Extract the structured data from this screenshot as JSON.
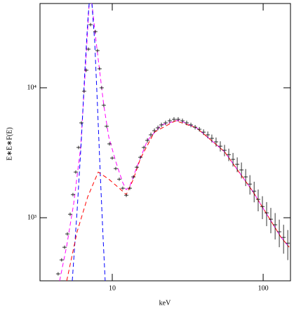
{
  "chart_data": {
    "type": "scatter",
    "xlabel": "keV",
    "ylabel": "E∗E∗F(E)",
    "log_x": true,
    "log_y": true,
    "xlim": [
      3.32,
      151.7
    ],
    "ylim": [
      327,
      44500
    ],
    "xticks": [
      10,
      100
    ],
    "yticks": [
      {
        "value": 1000,
        "label": "10³"
      },
      {
        "value": 10000,
        "label": "10⁴"
      }
    ],
    "color": "#000000",
    "x": [
      4.38,
      4.62,
      4.83,
      5.04,
      5.26,
      5.49,
      5.73,
      5.98,
      6.24,
      6.51,
      6.73,
      6.95,
      7.18,
      7.73,
      7.98,
      8.24,
      8.51,
      8.79,
      9.18,
      9.58,
      10,
      10.55,
      11.13,
      11.74,
      12.39,
      13.07,
      13.8,
      14.55,
      15.35,
      16.2,
      17.09,
      18.03,
      19.02,
      20.07,
      21.17,
      22.56,
      24.04,
      25.65,
      27.35,
      29.17,
      31.12,
      33.19,
      35.4,
      37.76,
      40.27,
      42.95,
      45.71,
      48.75,
      52.0,
      55.46,
      59.16,
      63.1,
      67.3,
      71.78,
      76.56,
      81.66,
      87.1,
      92.68,
      98.86,
      105.4,
      112.4,
      120.0,
      127.9,
      136.5,
      145.5
    ],
    "values": [
      370,
      474,
      593,
      751,
      1064,
      1507,
      2246,
      3473,
      5370,
      9400,
      13650,
      19820,
      30600,
      27050,
      19330,
      14000,
      10000,
      7330,
      5050,
      3700,
      2880,
      2390,
      1980,
      1687,
      1489,
      1687,
      2061,
      2449,
      2917,
      3473,
      3936,
      4346,
      4677,
      4920,
      5176,
      5370,
      5572,
      5714,
      5714,
      5572,
      5370,
      5176,
      4977,
      4797,
      4560,
      4346,
      4083,
      3837,
      3556,
      3304,
      3062,
      2812,
      2576,
      2333,
      2061,
      1816,
      1603,
      1384,
      1219,
      1091,
      975,
      883,
      780,
      706,
      638
    ],
    "yerr": [
      11,
      14,
      18,
      23,
      32,
      45,
      67,
      104,
      161,
      282,
      410,
      595,
      918,
      811,
      580,
      420,
      300,
      220,
      150,
      111,
      86,
      72,
      59,
      51,
      45,
      51,
      62,
      73,
      88,
      104,
      160,
      174,
      187,
      197,
      207,
      215,
      223,
      229,
      229,
      223,
      215,
      207,
      199,
      192,
      228,
      261,
      286,
      307,
      320,
      330,
      337,
      337,
      335,
      327,
      309,
      309,
      289,
      263,
      244,
      229,
      215,
      203,
      187,
      177,
      166
    ],
    "series": [
      {
        "color": "#ff00ff",
        "x": [
          4.48,
          4.99,
          5.55,
          6.18,
          6.59,
          7.03,
          7.33,
          7.82,
          8.24,
          8.79,
          9.48,
          10.55,
          11.74,
          12.39,
          13.07,
          14.55,
          17.09,
          21.17,
          27.67,
          36.14,
          55.46,
          85.11,
          130.6,
          148.6
        ],
        "values": [
          327,
          608,
          1282,
          3473,
          12050,
          44500,
          44500,
          22450,
          13650,
          7330,
          4188,
          2704,
          1862,
          1644,
          1751,
          2449,
          3936,
          5176,
          5640,
          4920,
          3221,
          1603,
          714,
          593
        ]
      },
      {
        "color": "#0000ff",
        "x": [
          5.43,
          5.85,
          6.24,
          6.59,
          6.88,
          7.03,
          7.33,
          7.65,
          7.98,
          8.34,
          8.7,
          8.98
        ],
        "values": [
          327,
          1132,
          3936,
          13650,
          32650,
          44500,
          44500,
          22450,
          7330,
          2110,
          688,
          327
        ]
      },
      {
        "color": "#ff0000",
        "x": [
          4.99,
          5.85,
          6.88,
          8.07,
          9.48,
          11.13,
          12.39,
          13.8,
          15.35,
          19.02,
          26.24,
          36.14,
          55.46,
          85.11,
          130.6,
          148.6
        ],
        "values": [
          327,
          780,
          1453,
          2246,
          1980,
          1687,
          1507,
          1980,
          2845,
          4560,
          5572,
          4920,
          3221,
          1603,
          714,
          593
        ]
      }
    ]
  }
}
